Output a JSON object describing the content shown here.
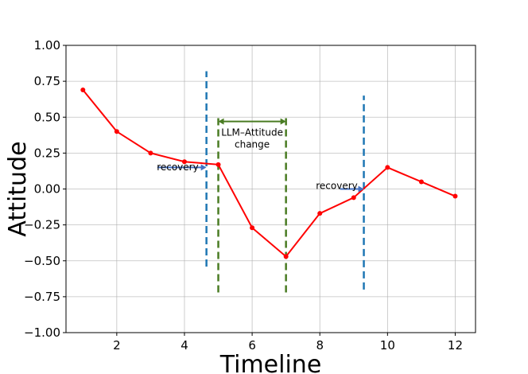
{
  "chart_data": {
    "type": "line",
    "xlabel": "Timeline",
    "ylabel": "Attitude",
    "xlim": [
      0.5,
      12.6
    ],
    "ylim": [
      -1.0,
      1.0
    ],
    "xticks": [
      2,
      4,
      6,
      8,
      10,
      12
    ],
    "yticks": [
      1.0,
      0.75,
      0.5,
      0.25,
      0.0,
      -0.25,
      -0.5,
      -0.75,
      -1.0
    ],
    "ytick_labels": [
      "1.00",
      "0.75",
      "0.50",
      "0.25",
      "0.00",
      "−0.25",
      "−0.50",
      "−0.75",
      "−1.00"
    ],
    "grid": true,
    "series": [
      {
        "color": "#ff0000",
        "x": [
          1,
          2,
          3,
          4,
          5,
          6,
          7,
          8,
          9,
          10,
          11,
          12
        ],
        "y": [
          0.69,
          0.4,
          0.25,
          0.19,
          0.17,
          -0.27,
          -0.47,
          -0.17,
          -0.06,
          0.15,
          0.05,
          -0.05
        ]
      }
    ],
    "vlines": [
      {
        "x": 4.65,
        "y": [
          -0.54,
          0.82
        ],
        "color": "#1f77b4"
      },
      {
        "x": 9.3,
        "y": [
          -0.7,
          0.65
        ],
        "color": "#1f77b4"
      },
      {
        "x": 5.0,
        "y": [
          -0.72,
          0.52
        ],
        "color": "#4a7c23"
      },
      {
        "x": 7.0,
        "y": [
          -0.72,
          0.52
        ],
        "color": "#4a7c23"
      }
    ],
    "annotations": [
      {
        "text": "recovery",
        "x": 3.8,
        "y": 0.13,
        "arrow_from": [
          3.2,
          0.15
        ],
        "arrow_to": [
          4.65,
          0.15
        ],
        "color": "#4472c4"
      },
      {
        "text": "recovery",
        "x": 8.5,
        "y": 0.0,
        "arrow_from": [
          8.6,
          0.0
        ],
        "arrow_to": [
          9.3,
          0.0
        ],
        "color": "#4472c4"
      },
      {
        "text": "LLM–Attitude",
        "text2": "change",
        "x": 6.0,
        "y": 0.37,
        "arrow_from": [
          5.0,
          0.47
        ],
        "arrow_to": [
          7.0,
          0.47
        ],
        "color": "#4a7c23",
        "double": true
      }
    ]
  }
}
